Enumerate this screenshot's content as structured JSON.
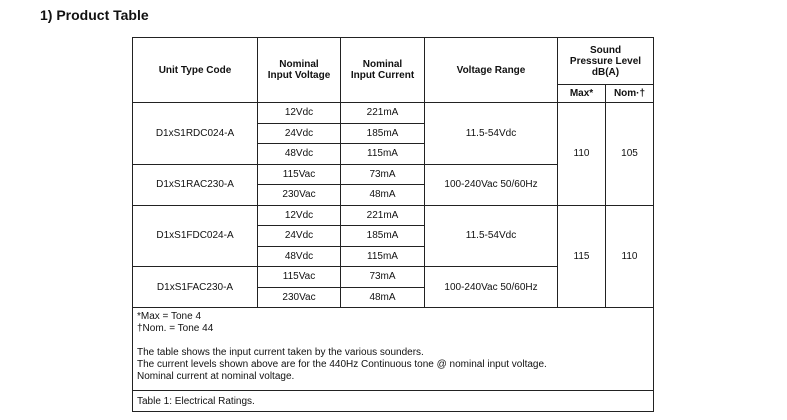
{
  "section_title": "1)   Product Table",
  "headers": {
    "unit_type_code": "Unit Type Code",
    "nominal_input_voltage": [
      "Nominal",
      "Input Voltage"
    ],
    "nominal_input_current": [
      "Nominal",
      "Input Current"
    ],
    "voltage_range": "Voltage Range",
    "spl": [
      "Sound",
      "Pressure Level",
      "dB(A)"
    ],
    "max": "Max*",
    "nom": "Nom·†"
  },
  "groups": [
    {
      "code": "D1xS1RDC024-A",
      "range": "11.5-54Vdc",
      "rows": [
        [
          "12Vdc",
          "221mA"
        ],
        [
          "24Vdc",
          "185mA"
        ],
        [
          "48Vdc",
          "115mA"
        ]
      ]
    },
    {
      "code": "D1xS1RAC230-A",
      "range": "100-240Vac 50/60Hz",
      "rows": [
        [
          "115Vac",
          "73mA"
        ],
        [
          "230Vac",
          "48mA"
        ]
      ]
    },
    {
      "code": "D1xS1FDC024-A",
      "range": "11.5-54Vdc",
      "rows": [
        [
          "12Vdc",
          "221mA"
        ],
        [
          "24Vdc",
          "185mA"
        ],
        [
          "48Vdc",
          "115mA"
        ]
      ]
    },
    {
      "code": "D1xS1FAC230-A",
      "range": "100-240Vac 50/60Hz",
      "rows": [
        [
          "115Vac",
          "73mA"
        ],
        [
          "230Vac",
          "48mA"
        ]
      ]
    }
  ],
  "spl": [
    {
      "max": "110",
      "nom": "105"
    },
    {
      "max": "115",
      "nom": "110"
    }
  ],
  "notes": {
    "max_def": "*Max = Tone 4",
    "nom_def": "†Nom. = Tone 44",
    "line1": "The table shows the input current taken by the various sounders.",
    "line2": "The current levels shown above are for the 440Hz Continuous tone @ nominal input voltage.",
    "line3": "Nominal current at nominal voltage."
  },
  "caption": "Table 1: Electrical Ratings."
}
